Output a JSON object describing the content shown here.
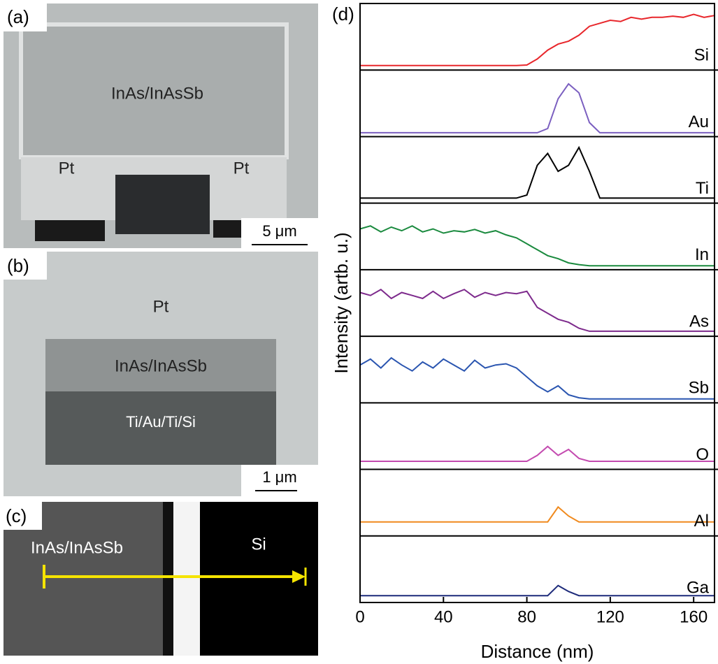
{
  "panels": {
    "a": {
      "label": "(a)",
      "texts": [
        "InAs/InAsSb",
        "Pt",
        "Pt"
      ],
      "scale": "5 μm"
    },
    "b": {
      "label": "(b)",
      "texts": [
        "Pt",
        "InAs/InAsSb",
        "Ti/Au/Ti/Si"
      ],
      "scale": "1 μm"
    },
    "c": {
      "label": "(c)",
      "texts": [
        "InAs/InAsSb",
        "Si"
      ]
    }
  },
  "chart_data": {
    "type": "line",
    "panel_label": "(d)",
    "y_label": "Intensity (artb. u.)",
    "x_label": "Distance (nm)",
    "xlim": [
      0,
      170
    ],
    "xticks": [
      0,
      40,
      80,
      120,
      160
    ],
    "ylim": [
      0,
      1
    ],
    "x": [
      0,
      5,
      10,
      15,
      20,
      25,
      30,
      35,
      40,
      45,
      50,
      55,
      60,
      65,
      70,
      75,
      80,
      85,
      90,
      95,
      100,
      105,
      110,
      115,
      120,
      125,
      130,
      135,
      140,
      145,
      150,
      155,
      160,
      165,
      170
    ],
    "series": [
      {
        "name": "Si",
        "color": "#e8262b",
        "values": [
          0.04,
          0.04,
          0.04,
          0.04,
          0.04,
          0.04,
          0.04,
          0.04,
          0.04,
          0.04,
          0.04,
          0.04,
          0.04,
          0.04,
          0.04,
          0.04,
          0.05,
          0.15,
          0.3,
          0.4,
          0.45,
          0.55,
          0.7,
          0.75,
          0.8,
          0.78,
          0.85,
          0.82,
          0.85,
          0.85,
          0.87,
          0.85,
          0.9,
          0.85,
          0.88
        ]
      },
      {
        "name": "Au",
        "color": "#7b5fc0",
        "values": [
          0.03,
          0.03,
          0.03,
          0.03,
          0.03,
          0.03,
          0.03,
          0.03,
          0.03,
          0.03,
          0.03,
          0.03,
          0.03,
          0.03,
          0.03,
          0.03,
          0.03,
          0.03,
          0.1,
          0.6,
          0.85,
          0.7,
          0.2,
          0.03,
          0.03,
          0.03,
          0.03,
          0.03,
          0.03,
          0.03,
          0.03,
          0.03,
          0.03,
          0.03,
          0.03
        ]
      },
      {
        "name": "Ti",
        "color": "#000000",
        "values": [
          0.05,
          0.05,
          0.05,
          0.05,
          0.05,
          0.05,
          0.05,
          0.05,
          0.05,
          0.05,
          0.05,
          0.05,
          0.05,
          0.05,
          0.05,
          0.05,
          0.1,
          0.6,
          0.8,
          0.5,
          0.6,
          0.9,
          0.5,
          0.05,
          0.05,
          0.05,
          0.05,
          0.05,
          0.05,
          0.05,
          0.05,
          0.05,
          0.05,
          0.05,
          0.05
        ]
      },
      {
        "name": "In",
        "color": "#1a8a3e",
        "values": [
          0.65,
          0.7,
          0.6,
          0.68,
          0.62,
          0.7,
          0.6,
          0.65,
          0.58,
          0.62,
          0.6,
          0.64,
          0.58,
          0.62,
          0.55,
          0.5,
          0.4,
          0.3,
          0.2,
          0.15,
          0.08,
          0.05,
          0.03,
          0.03,
          0.03,
          0.03,
          0.03,
          0.03,
          0.03,
          0.03,
          0.03,
          0.03,
          0.03,
          0.03,
          0.03
        ]
      },
      {
        "name": "As",
        "color": "#7d2a8c",
        "values": [
          0.7,
          0.65,
          0.75,
          0.6,
          0.7,
          0.65,
          0.6,
          0.72,
          0.6,
          0.68,
          0.75,
          0.62,
          0.7,
          0.65,
          0.7,
          0.68,
          0.72,
          0.45,
          0.35,
          0.25,
          0.2,
          0.1,
          0.05,
          0.05,
          0.05,
          0.05,
          0.05,
          0.05,
          0.05,
          0.05,
          0.05,
          0.05,
          0.05,
          0.05,
          0.05
        ]
      },
      {
        "name": "Sb",
        "color": "#2a55b0",
        "values": [
          0.6,
          0.7,
          0.55,
          0.72,
          0.6,
          0.5,
          0.65,
          0.55,
          0.7,
          0.6,
          0.5,
          0.68,
          0.55,
          0.6,
          0.62,
          0.55,
          0.4,
          0.25,
          0.15,
          0.25,
          0.1,
          0.05,
          0.03,
          0.03,
          0.03,
          0.03,
          0.03,
          0.03,
          0.03,
          0.03,
          0.03,
          0.03,
          0.03,
          0.03,
          0.03
        ]
      },
      {
        "name": "O",
        "color": "#c44bb0",
        "values": [
          0.1,
          0.1,
          0.1,
          0.1,
          0.1,
          0.1,
          0.1,
          0.1,
          0.1,
          0.1,
          0.1,
          0.1,
          0.1,
          0.1,
          0.1,
          0.1,
          0.1,
          0.2,
          0.35,
          0.2,
          0.3,
          0.15,
          0.1,
          0.1,
          0.1,
          0.1,
          0.1,
          0.1,
          0.1,
          0.1,
          0.1,
          0.1,
          0.1,
          0.1,
          0.1
        ]
      },
      {
        "name": "Al",
        "color": "#f08a1e",
        "values": [
          0.2,
          0.2,
          0.2,
          0.2,
          0.2,
          0.2,
          0.2,
          0.2,
          0.2,
          0.2,
          0.2,
          0.2,
          0.2,
          0.2,
          0.2,
          0.2,
          0.2,
          0.2,
          0.2,
          0.45,
          0.3,
          0.2,
          0.2,
          0.2,
          0.2,
          0.2,
          0.2,
          0.2,
          0.2,
          0.2,
          0.2,
          0.2,
          0.2,
          0.2,
          0.2
        ]
      },
      {
        "name": "Ga",
        "color": "#1d2a7a",
        "values": [
          0.08,
          0.08,
          0.08,
          0.08,
          0.08,
          0.08,
          0.08,
          0.08,
          0.08,
          0.08,
          0.08,
          0.08,
          0.08,
          0.08,
          0.08,
          0.08,
          0.08,
          0.08,
          0.08,
          0.25,
          0.15,
          0.08,
          0.08,
          0.08,
          0.08,
          0.08,
          0.08,
          0.08,
          0.08,
          0.08,
          0.08,
          0.08,
          0.08,
          0.08,
          0.08
        ]
      }
    ]
  }
}
